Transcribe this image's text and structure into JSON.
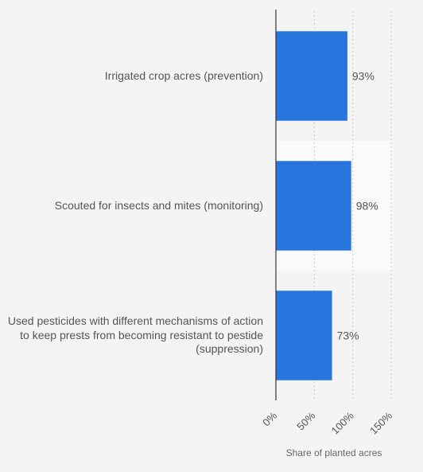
{
  "chart_data": {
    "type": "bar",
    "orientation": "horizontal",
    "categories": [
      "Irrigated crop acres (prevention)",
      "Scouted for insects and mites (monitoring)",
      "Used pesticides with different mechanisms of action to keep prests from becoming resistant to pestide (suppression)"
    ],
    "values": [
      93,
      98,
      73
    ],
    "value_labels": [
      "93%",
      "98%",
      "73%"
    ],
    "xlabel": "Share of planted acres",
    "ylabel": "",
    "xlim": [
      0,
      150
    ],
    "xticks": [
      0,
      50,
      100,
      150
    ],
    "xtick_labels": [
      "0%",
      "50%",
      "100%",
      "150%"
    ],
    "grid": "vertical dotted",
    "legend": "none",
    "colors": {
      "bar": "#2876dd",
      "band": "#fafafa",
      "axis": "#333333",
      "grid": "#c8c8c8",
      "label": "#555555",
      "background": "#f4f4f4"
    }
  }
}
